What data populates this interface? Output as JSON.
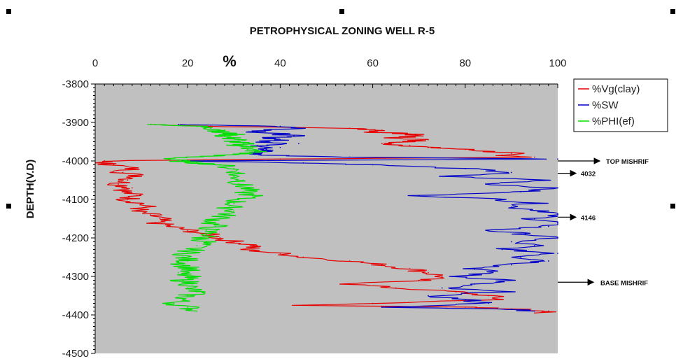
{
  "chart_data": {
    "type": "line",
    "title": "PETROPHYSICAL ZONING WELL R-5",
    "xlabel": "%",
    "ylabel": "DEPTH(V.D)",
    "xlim": [
      0,
      100
    ],
    "ylim": [
      -4500,
      -3800
    ],
    "x_ticks": [
      0,
      20,
      40,
      60,
      80,
      100
    ],
    "x_tick_labels": [
      "0",
      "20",
      "40",
      "60",
      "80",
      "100"
    ],
    "y_ticks": [
      -3800,
      -3900,
      -4000,
      -4100,
      -4200,
      -4300,
      -4400,
      -4500
    ],
    "y_tick_labels": [
      "-3800",
      "-3900",
      "-4000",
      "-4100",
      "-4200",
      "-4300",
      "-4400",
      "-4500"
    ],
    "x_axis_position": "top",
    "grid": false,
    "legend_position": "top-right",
    "plot_background": "#c0c0c0",
    "series": [
      {
        "name": "%Vg(clay)",
        "color": "#e60000",
        "points": [
          [
            -3905,
            12
          ],
          [
            -3910,
            25
          ],
          [
            -3915,
            55
          ],
          [
            -3920,
            62
          ],
          [
            -3925,
            60
          ],
          [
            -3930,
            68
          ],
          [
            -3935,
            70
          ],
          [
            -3940,
            64
          ],
          [
            -3945,
            72
          ],
          [
            -3950,
            67
          ],
          [
            -3955,
            62
          ],
          [
            -3960,
            68
          ],
          [
            -3965,
            72
          ],
          [
            -3970,
            80
          ],
          [
            -3975,
            85
          ],
          [
            -3980,
            90
          ],
          [
            -3985,
            88
          ],
          [
            -3990,
            95
          ],
          [
            -3995,
            40
          ],
          [
            -4000,
            2
          ],
          [
            -4005,
            1
          ],
          [
            -4010,
            4
          ],
          [
            -4020,
            8
          ],
          [
            -4030,
            6
          ],
          [
            -4040,
            10
          ],
          [
            -4050,
            7
          ],
          [
            -4060,
            5
          ],
          [
            -4070,
            8
          ],
          [
            -4080,
            6
          ],
          [
            -4090,
            9
          ],
          [
            -4100,
            7
          ],
          [
            -4110,
            10
          ],
          [
            -4120,
            11
          ],
          [
            -4130,
            8
          ],
          [
            -4140,
            12
          ],
          [
            -4150,
            14
          ],
          [
            -4160,
            13
          ],
          [
            -4170,
            16
          ],
          [
            -4180,
            20
          ],
          [
            -4190,
            24
          ],
          [
            -4200,
            27
          ],
          [
            -4210,
            30
          ],
          [
            -4220,
            35
          ],
          [
            -4230,
            32
          ],
          [
            -4240,
            40
          ],
          [
            -4250,
            45
          ],
          [
            -4260,
            55
          ],
          [
            -4270,
            62
          ],
          [
            -4280,
            68
          ],
          [
            -4290,
            72
          ],
          [
            -4300,
            75
          ],
          [
            -4310,
            70
          ],
          [
            -4320,
            55
          ],
          [
            -4330,
            65
          ],
          [
            -4340,
            78
          ],
          [
            -4350,
            85
          ],
          [
            -4360,
            88
          ],
          [
            -4370,
            60
          ],
          [
            -4375,
            45
          ],
          [
            -4380,
            80
          ],
          [
            -4385,
            92
          ],
          [
            -4390,
            98
          ],
          [
            -4395,
            95
          ]
        ]
      },
      {
        "name": "%SW",
        "color": "#0000c8",
        "points": [
          [
            -3905,
            18
          ],
          [
            -3910,
            40
          ],
          [
            -3915,
            45
          ],
          [
            -3920,
            38
          ],
          [
            -3925,
            35
          ],
          [
            -3930,
            40
          ],
          [
            -3935,
            43
          ],
          [
            -3940,
            38
          ],
          [
            -3945,
            40
          ],
          [
            -3950,
            36
          ],
          [
            -3955,
            44
          ],
          [
            -3960,
            35
          ],
          [
            -3965,
            40
          ],
          [
            -3970,
            37
          ],
          [
            -3975,
            36
          ],
          [
            -3980,
            34
          ],
          [
            -3985,
            36
          ],
          [
            -3990,
            55
          ],
          [
            -3995,
            100
          ],
          [
            -4000,
            20
          ],
          [
            -4005,
            45
          ],
          [
            -4010,
            60
          ],
          [
            -4020,
            80
          ],
          [
            -4030,
            90
          ],
          [
            -4040,
            75
          ],
          [
            -4050,
            98
          ],
          [
            -4060,
            85
          ],
          [
            -4070,
            100
          ],
          [
            -4080,
            92
          ],
          [
            -4090,
            70
          ],
          [
            -4100,
            88
          ],
          [
            -4110,
            95
          ],
          [
            -4120,
            90
          ],
          [
            -4130,
            98
          ],
          [
            -4140,
            100
          ],
          [
            -4150,
            95
          ],
          [
            -4160,
            100
          ],
          [
            -4170,
            98
          ],
          [
            -4180,
            85
          ],
          [
            -4190,
            93
          ],
          [
            -4200,
            100
          ],
          [
            -4210,
            90
          ],
          [
            -4220,
            95
          ],
          [
            -4230,
            88
          ],
          [
            -4240,
            100
          ],
          [
            -4250,
            92
          ],
          [
            -4260,
            98
          ],
          [
            -4270,
            90
          ],
          [
            -4280,
            82
          ],
          [
            -4290,
            86
          ],
          [
            -4300,
            78
          ],
          [
            -4310,
            90
          ],
          [
            -4320,
            82
          ],
          [
            -4330,
            75
          ],
          [
            -4340,
            88
          ],
          [
            -4350,
            72
          ],
          [
            -4360,
            80
          ],
          [
            -4370,
            85
          ],
          [
            -4380,
            62
          ],
          [
            -4385,
            90
          ],
          [
            -4390,
            95
          ]
        ]
      },
      {
        "name": "%PHI(ef)",
        "color": "#00e000",
        "points": [
          [
            -3905,
            13
          ],
          [
            -3910,
            22
          ],
          [
            -3915,
            25
          ],
          [
            -3920,
            28
          ],
          [
            -3925,
            26
          ],
          [
            -3930,
            30
          ],
          [
            -3935,
            28
          ],
          [
            -3940,
            29
          ],
          [
            -3945,
            31
          ],
          [
            -3950,
            30
          ],
          [
            -3955,
            32
          ],
          [
            -3960,
            31
          ],
          [
            -3965,
            34
          ],
          [
            -3970,
            33
          ],
          [
            -3975,
            35
          ],
          [
            -3980,
            33
          ],
          [
            -3985,
            28
          ],
          [
            -3990,
            20
          ],
          [
            -3995,
            16
          ],
          [
            -4000,
            18
          ],
          [
            -4005,
            22
          ],
          [
            -4010,
            27
          ],
          [
            -4020,
            30
          ],
          [
            -4030,
            31
          ],
          [
            -4040,
            30
          ],
          [
            -4050,
            32
          ],
          [
            -4060,
            31
          ],
          [
            -4070,
            33
          ],
          [
            -4080,
            32
          ],
          [
            -4090,
            34
          ],
          [
            -4100,
            31
          ],
          [
            -4110,
            30
          ],
          [
            -4120,
            29
          ],
          [
            -4130,
            30
          ],
          [
            -4140,
            28
          ],
          [
            -4150,
            27
          ],
          [
            -4160,
            25
          ],
          [
            -4170,
            26
          ],
          [
            -4180,
            24
          ],
          [
            -4190,
            25
          ],
          [
            -4200,
            23
          ],
          [
            -4210,
            24
          ],
          [
            -4220,
            22
          ],
          [
            -4230,
            21
          ],
          [
            -4240,
            20
          ],
          [
            -4250,
            19
          ],
          [
            -4260,
            20
          ],
          [
            -4270,
            19
          ],
          [
            -4280,
            21
          ],
          [
            -4290,
            18
          ],
          [
            -4300,
            20
          ],
          [
            -4310,
            19
          ],
          [
            -4320,
            21
          ],
          [
            -4330,
            20
          ],
          [
            -4340,
            22
          ],
          [
            -4350,
            20
          ],
          [
            -4360,
            19
          ],
          [
            -4370,
            17
          ],
          [
            -4380,
            20
          ],
          [
            -4390,
            22
          ]
        ]
      }
    ],
    "annotations": [
      {
        "label": "TOP MISHRIF",
        "depth": -4000
      },
      {
        "label": "4032",
        "depth": -4032
      },
      {
        "label": "4146",
        "depth": -4146
      },
      {
        "label": "BASE MISHRIF",
        "depth": -4315
      }
    ]
  }
}
